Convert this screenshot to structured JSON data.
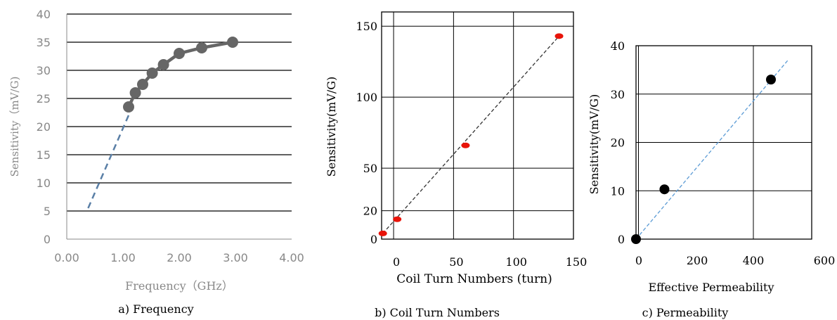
{
  "chart_data": [
    {
      "type": "scatter",
      "caption": "a) Frequency",
      "xlabel": "Frequency（GHz）",
      "ylabel": "Sensitivity（mV/G)",
      "xlim": [
        0,
        4
      ],
      "ylim": [
        0,
        40
      ],
      "x_ticks": [
        "0.00",
        "1.00",
        "2.00",
        "3.00",
        "4.00"
      ],
      "y_ticks": [
        "0",
        "5",
        "10",
        "15",
        "20",
        "25",
        "30",
        "35",
        "40"
      ],
      "grid": "horizontal",
      "colors": {
        "series": "#666666",
        "trend": "#5a7fa6",
        "axis": "#888888"
      },
      "series": [
        {
          "x": [
            1.1,
            1.22,
            1.35,
            1.52,
            1.72,
            2.0,
            2.4,
            2.95
          ],
          "y": [
            23.5,
            26,
            27.5,
            29.5,
            31,
            33,
            34,
            35
          ]
        }
      ],
      "trend": {
        "x": [
          0.38,
          1.1
        ],
        "y": [
          5.5,
          22
        ]
      }
    },
    {
      "type": "scatter",
      "caption": "b) Coil Turn Numbers",
      "xlabel": "Coil Turn Numbers (turn)",
      "ylabel": "Sensitivity(mV/G)",
      "xlim": [
        -10,
        150
      ],
      "ylim": [
        0,
        160
      ],
      "x_ticks": [
        "0",
        "50",
        "100",
        "150"
      ],
      "x_tick_values": [
        0,
        50,
        100,
        150
      ],
      "y_ticks": [
        "0",
        "20",
        "50",
        "100",
        "150"
      ],
      "y_tick_values": [
        0,
        20,
        50,
        100,
        150
      ],
      "grid": "both",
      "colors": {
        "series": "#e8140a",
        "trend": "#333333",
        "axis": "#000000"
      },
      "series": [
        {
          "x": [
            -9,
            3,
            60,
            138
          ],
          "y": [
            4,
            14,
            66,
            143
          ]
        }
      ],
      "trend": {
        "x": [
          -9,
          138
        ],
        "y": [
          4,
          143
        ]
      }
    },
    {
      "type": "scatter",
      "caption": "c) Permeability",
      "xlabel": "Effective Permeability",
      "ylabel": "Sensitivity(mV/G)",
      "xlim": [
        0,
        600
      ],
      "ylim": [
        0,
        40
      ],
      "x_ticks": [
        "0",
        "200",
        "400",
        "600"
      ],
      "y_ticks": [
        "0",
        "10",
        "20",
        "30",
        "40"
      ],
      "grid": "both",
      "colors": {
        "series": "#000000",
        "trend": "#5b9bd5",
        "axis": "#000000"
      },
      "series": [
        {
          "x": [
            0,
            145,
            453
          ],
          "y": [
            0,
            10.3,
            33
          ]
        }
      ],
      "trend": {
        "x": [
          0,
          510
        ],
        "y": [
          0,
          37
        ]
      }
    }
  ]
}
